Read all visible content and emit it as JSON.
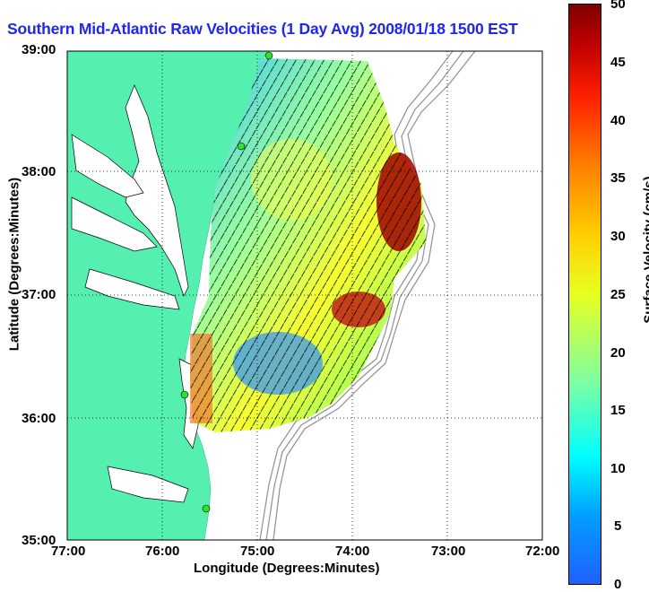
{
  "title": "Southern Mid-Atlantic Raw Velocities (1 Day Avg) 2008/01/18 1500 EST",
  "x_axis": {
    "label": "Longitude (Degrees:Minutes)",
    "ticks": [
      "77:00",
      "76:00",
      "75:00",
      "74:00",
      "73:00",
      "72:00"
    ]
  },
  "y_axis": {
    "label": "Latitude (Degrees:Minutes)",
    "ticks": [
      "39:00",
      "38:00",
      "37:00",
      "36:00",
      "35:00"
    ]
  },
  "colorbar": {
    "label": "Surface Velocity (cm/s)",
    "ticks": [
      "50",
      "45",
      "40",
      "35",
      "30",
      "25",
      "20",
      "15",
      "10",
      "5",
      "0"
    ],
    "min": 0,
    "max": 50
  },
  "colors": {
    "land": "#55f0b0",
    "title": "#1f27ee",
    "grid": "#000000",
    "bathymetry": "#909090"
  }
}
